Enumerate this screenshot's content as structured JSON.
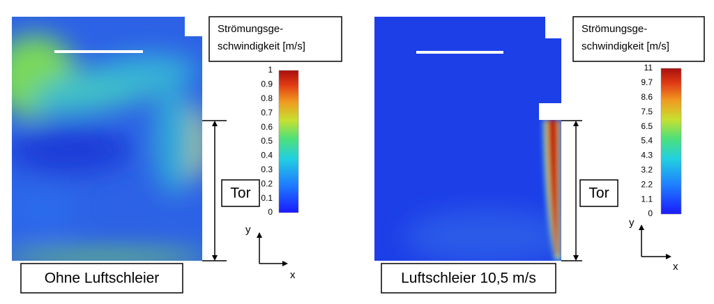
{
  "panels": [
    {
      "legend_title": [
        "Strömungsge-",
        "schwindigkeit [m/s]"
      ],
      "colorbar_ticks": [
        1,
        0.9,
        0.8,
        0.7,
        0.6,
        0.5,
        0.4,
        0.3,
        0.2,
        0.1,
        0
      ],
      "gate_label": "Tor",
      "axis_x": "x",
      "axis_y": "y",
      "caption": "Ohne Luftschleier"
    },
    {
      "legend_title": [
        "Strömungsge-",
        "schwindigkeit [m/s]"
      ],
      "colorbar_ticks": [
        11,
        9.7,
        8.6,
        7.5,
        6.5,
        5.4,
        4.3,
        3.2,
        2.2,
        1.1,
        0
      ],
      "gate_label": "Tor",
      "axis_x": "x",
      "axis_y": "y",
      "caption": "Luftschleier 10,5 m/s"
    }
  ]
}
